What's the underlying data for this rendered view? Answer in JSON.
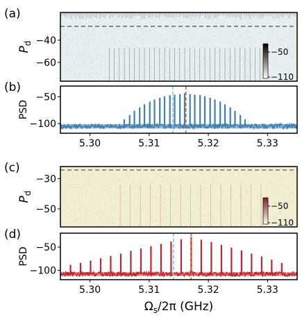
{
  "chart_data": [
    {
      "type": "heatmap",
      "panel_label": "(a)",
      "ylabel": "P",
      "ylabel_sub": "d",
      "yticks": [
        -40,
        -60
      ],
      "ylim": [
        -77,
        -15
      ],
      "xlim": [
        5.295,
        5.335
      ],
      "dashed_level": -27.5,
      "background": "#e6eef0",
      "comb_color": "#707070",
      "colorbar": {
        "ticks": [
          "−50",
          "−110"
        ],
        "range": [
          -110,
          -45
        ],
        "cmap": [
          "#ffffff",
          "#000000"
        ]
      },
      "comb": {
        "center": 5.316,
        "spacing": 0.00085,
        "count": 30,
        "threshold_top": -32,
        "threshold_min": -47,
        "curvature": 0.05
      }
    },
    {
      "type": "line",
      "panel_label": "(b)",
      "ylabel": "PSD",
      "yticks": [
        -50,
        -100
      ],
      "ylim": [
        -118,
        -30
      ],
      "xlim": [
        5.295,
        5.335
      ],
      "xticks": [
        "5.30",
        "5.31",
        "5.32",
        "5.33"
      ],
      "xtick_values": [
        5.3,
        5.31,
        5.32,
        5.33
      ],
      "series_color": "#3d7fb3",
      "noise_floor": -105,
      "peaks": [
        {
          "x": 5.3058,
          "y": -92
        },
        {
          "x": 5.3067,
          "y": -84
        },
        {
          "x": 5.3075,
          "y": -76
        },
        {
          "x": 5.3084,
          "y": -70
        },
        {
          "x": 5.3092,
          "y": -64
        },
        {
          "x": 5.3101,
          "y": -59
        },
        {
          "x": 5.3109,
          "y": -55
        },
        {
          "x": 5.3118,
          "y": -52
        },
        {
          "x": 5.3126,
          "y": -49
        },
        {
          "x": 5.3135,
          "y": -47
        },
        {
          "x": 5.3143,
          "y": -46
        },
        {
          "x": 5.3152,
          "y": -45
        },
        {
          "x": 5.316,
          "y": -43
        },
        {
          "x": 5.3169,
          "y": -45
        },
        {
          "x": 5.3177,
          "y": -46
        },
        {
          "x": 5.3186,
          "y": -47
        },
        {
          "x": 5.3194,
          "y": -49
        },
        {
          "x": 5.3203,
          "y": -52
        },
        {
          "x": 5.3211,
          "y": -55
        },
        {
          "x": 5.322,
          "y": -59
        },
        {
          "x": 5.3228,
          "y": -64
        },
        {
          "x": 5.3237,
          "y": -70
        },
        {
          "x": 5.3245,
          "y": -76
        },
        {
          "x": 5.3254,
          "y": -84
        },
        {
          "x": 5.3262,
          "y": -92
        }
      ],
      "markers": [
        {
          "x": 5.314,
          "color": "#7ec8e3"
        },
        {
          "x": 5.3162,
          "color": "#e05a3a"
        }
      ]
    },
    {
      "type": "heatmap",
      "panel_label": "(c)",
      "ylabel": "P",
      "ylabel_sub": "d",
      "yticks": [
        -30,
        -50
      ],
      "ylim": [
        -62,
        -22
      ],
      "xlim": [
        5.295,
        5.335
      ],
      "dashed_level": -24.3,
      "background": "#f1eed2",
      "comb_color": "#c08f7c",
      "colorbar": {
        "ticks": [
          "−50",
          "−110"
        ],
        "range": [
          -110,
          -45
        ],
        "cmap": [
          "#ffffee",
          "#7a2020"
        ]
      },
      "comb": {
        "center": 5.317,
        "spacing": 0.0017,
        "count": 14,
        "threshold_top": -24.5,
        "threshold_min": -34,
        "curvature": 0.03
      }
    },
    {
      "type": "line",
      "panel_label": "(d)",
      "ylabel": "PSD",
      "yticks": [
        -50,
        -100
      ],
      "ylim": [
        -120,
        -20
      ],
      "xlim": [
        5.295,
        5.335
      ],
      "xticks": [
        "5.30",
        "5.31",
        "5.32",
        "5.33"
      ],
      "xtick_values": [
        5.3,
        5.31,
        5.32,
        5.33
      ],
      "xlabel": "Ω",
      "xlabel_sub": "s",
      "xlabel_tail": "/2π (GHz)",
      "series_color": "#c0272d",
      "noise_floor": -108,
      "peaks": [
        {
          "x": 5.2967,
          "y": -88
        },
        {
          "x": 5.2984,
          "y": -84
        },
        {
          "x": 5.3001,
          "y": -79
        },
        {
          "x": 5.3018,
          "y": -74
        },
        {
          "x": 5.3035,
          "y": -69
        },
        {
          "x": 5.3052,
          "y": -64
        },
        {
          "x": 5.3069,
          "y": -58
        },
        {
          "x": 5.3086,
          "y": -53
        },
        {
          "x": 5.3103,
          "y": -48
        },
        {
          "x": 5.312,
          "y": -43
        },
        {
          "x": 5.3137,
          "y": -38
        },
        {
          "x": 5.3154,
          "y": -33
        },
        {
          "x": 5.3171,
          "y": -29
        },
        {
          "x": 5.3188,
          "y": -34
        },
        {
          "x": 5.3205,
          "y": -39
        },
        {
          "x": 5.3222,
          "y": -45
        },
        {
          "x": 5.3239,
          "y": -51
        },
        {
          "x": 5.3256,
          "y": -57
        },
        {
          "x": 5.3273,
          "y": -64
        },
        {
          "x": 5.329,
          "y": -70
        },
        {
          "x": 5.3307,
          "y": -77
        },
        {
          "x": 5.3324,
          "y": -84
        }
      ],
      "markers": [
        {
          "x": 5.3141,
          "color": "#7ec8e3"
        },
        {
          "x": 5.3171,
          "color": "#e05a3a"
        }
      ]
    }
  ]
}
